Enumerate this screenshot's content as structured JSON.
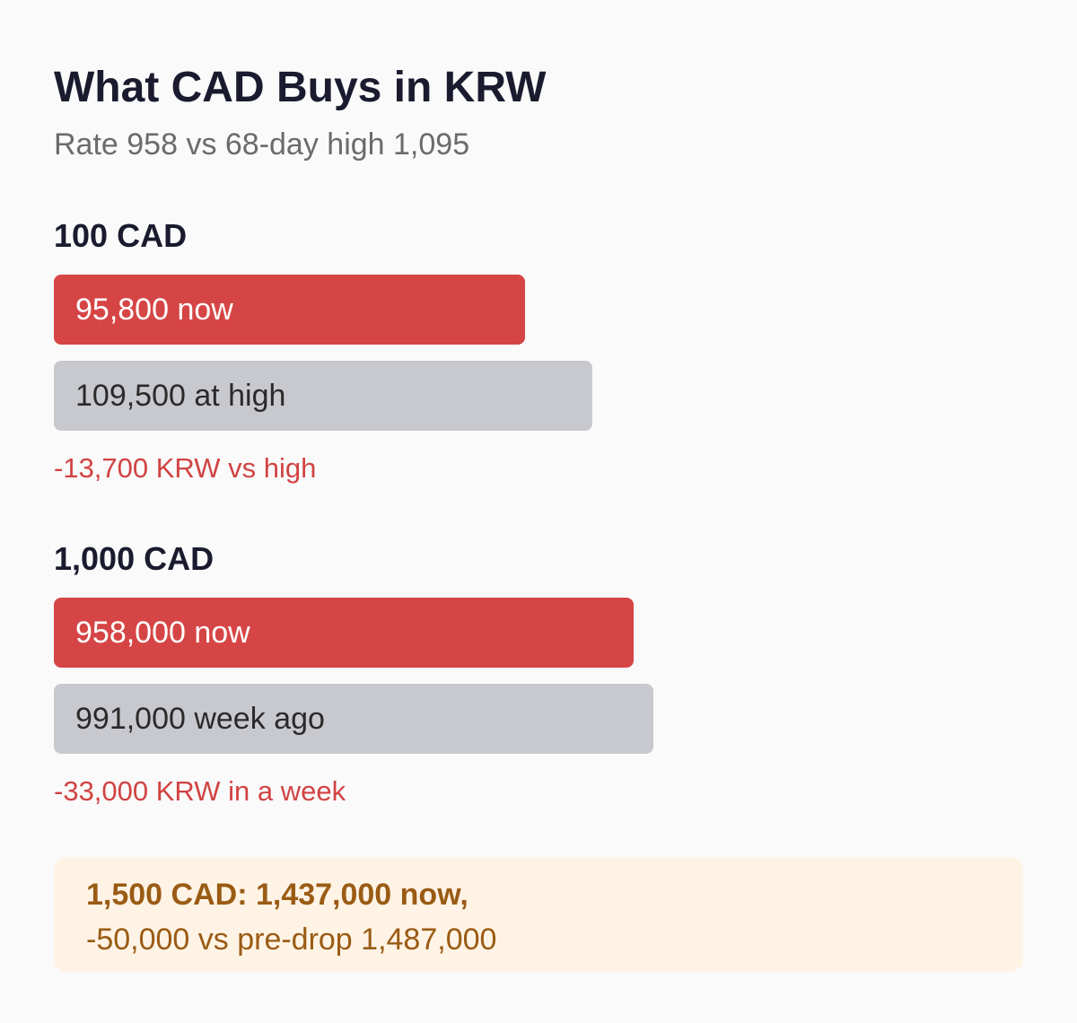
{
  "title": "What CAD Buys in KRW",
  "subtitle": "Rate 958 vs 68-day high 1,095",
  "colors": {
    "now_bar": "#d64545",
    "reference_bar": "#c8c9ce",
    "delta_text": "#d14343",
    "callout_bg": "#fff3e5",
    "callout_text": "#9a5b14"
  },
  "chart_data": {
    "type": "bar",
    "orientation": "horizontal",
    "unit": "KRW",
    "groups": [
      {
        "label": "100 CAD",
        "bars": [
          {
            "value": 95800,
            "text": "95,800 now",
            "kind": "now"
          },
          {
            "value": 109500,
            "text": "109,500 at high",
            "kind": "reference"
          }
        ],
        "delta_text": "-13,700 KRW vs high"
      },
      {
        "label": "1,000 CAD",
        "bars": [
          {
            "value": 958000,
            "text": "958,000 now",
            "kind": "now"
          },
          {
            "value": 991000,
            "text": "991,000 week ago",
            "kind": "reference"
          }
        ],
        "delta_text": "-33,000 KRW in a week"
      }
    ],
    "grid": false
  },
  "callout": {
    "line1": "1,500 CAD: 1,437,000 now,",
    "line2": "-50,000 vs pre-drop 1,487,000"
  }
}
